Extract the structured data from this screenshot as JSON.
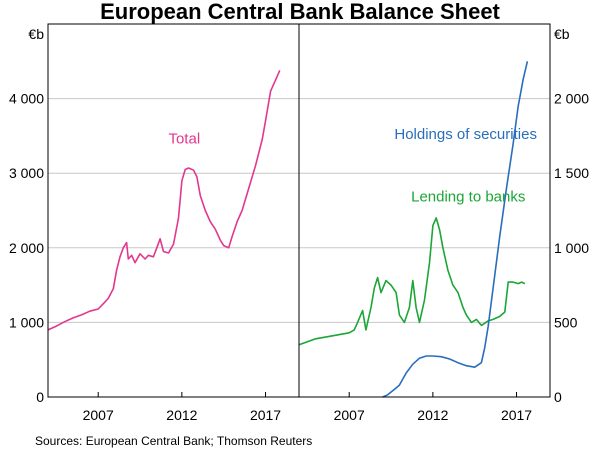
{
  "chart_data": {
    "type": "line",
    "title": "European Central Bank Balance Sheet",
    "source": "Sources: European Central Bank; Thomson Reuters",
    "panels": [
      {
        "id": "left",
        "unit": "€b",
        "xlim": [
          2004,
          2019
        ],
        "ylim": [
          0,
          5000
        ],
        "yticks": [
          0,
          1000,
          2000,
          3000,
          4000
        ],
        "ytick_labels": [
          "0",
          "1 000",
          "2 000",
          "3 000",
          "4 000"
        ],
        "xticks": [
          2007,
          2012,
          2017
        ],
        "xtick_labels": [
          "2007",
          "2012",
          "2017"
        ],
        "series": [
          {
            "name": "Total",
            "color": "#e2378d",
            "points": [
              [
                2004.0,
                900
              ],
              [
                2004.5,
                950
              ],
              [
                2005.0,
                1010
              ],
              [
                2005.5,
                1060
              ],
              [
                2006.0,
                1100
              ],
              [
                2006.5,
                1150
              ],
              [
                2007.0,
                1180
              ],
              [
                2007.3,
                1250
              ],
              [
                2007.6,
                1320
              ],
              [
                2007.9,
                1450
              ],
              [
                2008.1,
                1700
              ],
              [
                2008.3,
                1880
              ],
              [
                2008.5,
                2000
              ],
              [
                2008.7,
                2070
              ],
              [
                2008.8,
                1850
              ],
              [
                2009.0,
                1900
              ],
              [
                2009.2,
                1800
              ],
              [
                2009.5,
                1920
              ],
              [
                2009.8,
                1850
              ],
              [
                2010.0,
                1900
              ],
              [
                2010.3,
                1880
              ],
              [
                2010.5,
                2000
              ],
              [
                2010.7,
                2120
              ],
              [
                2010.9,
                1950
              ],
              [
                2011.2,
                1930
              ],
              [
                2011.5,
                2050
              ],
              [
                2011.8,
                2400
              ],
              [
                2012.0,
                2900
              ],
              [
                2012.2,
                3050
              ],
              [
                2012.4,
                3070
              ],
              [
                2012.7,
                3040
              ],
              [
                2012.9,
                2950
              ],
              [
                2013.1,
                2700
              ],
              [
                2013.4,
                2500
              ],
              [
                2013.7,
                2350
              ],
              [
                2014.0,
                2250
              ],
              [
                2014.3,
                2100
              ],
              [
                2014.5,
                2030
              ],
              [
                2014.8,
                2000
              ],
              [
                2015.0,
                2150
              ],
              [
                2015.3,
                2350
              ],
              [
                2015.6,
                2500
              ],
              [
                2016.0,
                2800
              ],
              [
                2016.4,
                3100
              ],
              [
                2016.8,
                3450
              ],
              [
                2017.0,
                3700
              ],
              [
                2017.3,
                4100
              ],
              [
                2017.6,
                4250
              ],
              [
                2017.85,
                4380
              ]
            ]
          }
        ],
        "annotations": [
          {
            "text": "Total",
            "x": 2011.2,
            "y": 3400,
            "color": "#e2378d"
          }
        ]
      },
      {
        "id": "right",
        "unit": "€b",
        "xlim": [
          2004,
          2019
        ],
        "ylim": [
          0,
          2500
        ],
        "yticks": [
          0,
          500,
          1000,
          1500,
          2000
        ],
        "ytick_labels": [
          "0",
          "500",
          "1 000",
          "1 500",
          "2 000"
        ],
        "xticks": [
          2007,
          2012,
          2017
        ],
        "xtick_labels": [
          "2007",
          "2012",
          "2017"
        ],
        "series": [
          {
            "name": "Lending to banks",
            "color": "#1ba636",
            "points": [
              [
                2004.0,
                350
              ],
              [
                2004.5,
                370
              ],
              [
                2005.0,
                390
              ],
              [
                2005.5,
                400
              ],
              [
                2006.0,
                410
              ],
              [
                2006.5,
                420
              ],
              [
                2007.0,
                430
              ],
              [
                2007.3,
                450
              ],
              [
                2007.5,
                500
              ],
              [
                2007.8,
                580
              ],
              [
                2008.0,
                450
              ],
              [
                2008.3,
                600
              ],
              [
                2008.5,
                730
              ],
              [
                2008.7,
                800
              ],
              [
                2008.9,
                700
              ],
              [
                2009.2,
                780
              ],
              [
                2009.5,
                750
              ],
              [
                2009.8,
                700
              ],
              [
                2010.0,
                550
              ],
              [
                2010.3,
                500
              ],
              [
                2010.6,
                600
              ],
              [
                2010.8,
                780
              ],
              [
                2011.0,
                600
              ],
              [
                2011.2,
                500
              ],
              [
                2011.5,
                650
              ],
              [
                2011.8,
                900
              ],
              [
                2012.0,
                1150
              ],
              [
                2012.2,
                1200
              ],
              [
                2012.4,
                1120
              ],
              [
                2012.6,
                1000
              ],
              [
                2012.9,
                850
              ],
              [
                2013.2,
                750
              ],
              [
                2013.5,
                700
              ],
              [
                2013.8,
                600
              ],
              [
                2014.0,
                550
              ],
              [
                2014.3,
                500
              ],
              [
                2014.6,
                520
              ],
              [
                2014.9,
                480
              ],
              [
                2015.3,
                510
              ],
              [
                2015.6,
                520
              ],
              [
                2016.0,
                540
              ],
              [
                2016.3,
                570
              ],
              [
                2016.5,
                770
              ],
              [
                2016.8,
                770
              ],
              [
                2017.1,
                760
              ],
              [
                2017.3,
                770
              ],
              [
                2017.5,
                760
              ]
            ]
          },
          {
            "name": "Holdings of securities",
            "color": "#2a6ebb",
            "points": [
              [
                2009.0,
                0
              ],
              [
                2009.3,
                15
              ],
              [
                2009.8,
                60
              ],
              [
                2010.0,
                80
              ],
              [
                2010.4,
                160
              ],
              [
                2010.8,
                220
              ],
              [
                2011.2,
                260
              ],
              [
                2011.6,
                275
              ],
              [
                2012.0,
                275
              ],
              [
                2012.5,
                270
              ],
              [
                2013.0,
                255
              ],
              [
                2013.5,
                230
              ],
              [
                2014.0,
                210
              ],
              [
                2014.5,
                200
              ],
              [
                2014.9,
                230
              ],
              [
                2015.1,
                330
              ],
              [
                2015.3,
                470
              ],
              [
                2015.6,
                730
              ],
              [
                2016.0,
                1080
              ],
              [
                2016.4,
                1400
              ],
              [
                2016.8,
                1700
              ],
              [
                2017.1,
                1950
              ],
              [
                2017.4,
                2130
              ],
              [
                2017.65,
                2250
              ]
            ]
          }
        ],
        "annotations": [
          {
            "text": "Holdings of securities",
            "x": 2009.7,
            "y": 1730,
            "color": "#2a6ebb"
          },
          {
            "text": "Lending to banks",
            "x": 2010.7,
            "y": 1310,
            "color": "#1ba636"
          }
        ]
      }
    ]
  }
}
